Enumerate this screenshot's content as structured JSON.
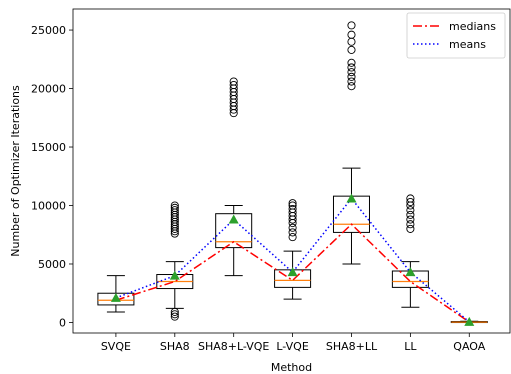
{
  "chart_data": {
    "type": "box",
    "categories": [
      "SVQE",
      "SHA8",
      "SHA8+L-VQE",
      "L-VQE",
      "SHA8+LL",
      "LL",
      "QAOA"
    ],
    "xlabel": "Method",
    "ylabel": "Number of Optimizer Iterations",
    "ylim": [
      -900,
      26800
    ],
    "yticks": [
      0,
      5000,
      10000,
      15000,
      20000,
      25000
    ],
    "grid": false,
    "legend": {
      "placement": "top-right",
      "entries": [
        "medians",
        "means"
      ]
    },
    "boxes": [
      {
        "category": "SVQE",
        "whisker_low": 900,
        "q1": 1500,
        "median": 1900,
        "q3": 2500,
        "whisker_high": 4000,
        "mean": 2100,
        "outliers": []
      },
      {
        "category": "SHA8",
        "whisker_low": 1200,
        "q1": 2900,
        "median": 3500,
        "q3": 4100,
        "whisker_high": 5200,
        "mean": 4000,
        "outliers": [
          500,
          700,
          900,
          7600,
          7800,
          8000,
          8200,
          8400,
          8600,
          8800,
          9000,
          9200,
          9400,
          9600,
          9800,
          10000
        ]
      },
      {
        "category": "SHA8+L-VQE",
        "whisker_low": 4000,
        "q1": 6400,
        "median": 6900,
        "q3": 9300,
        "whisker_high": 10000,
        "mean": 8800,
        "outliers": [
          17900,
          18200,
          18500,
          18800,
          19100,
          19400,
          19700,
          20000,
          20300,
          20600
        ]
      },
      {
        "category": "L-VQE",
        "whisker_low": 2000,
        "q1": 3000,
        "median": 3600,
        "q3": 4500,
        "whisker_high": 6100,
        "mean": 4300,
        "outliers": [
          7300,
          7700,
          8100,
          8500,
          8800,
          9100,
          9400,
          9700,
          10000,
          10200
        ]
      },
      {
        "category": "SHA8+LL",
        "whisker_low": 5000,
        "q1": 7700,
        "median": 8400,
        "q3": 10800,
        "whisker_high": 13200,
        "mean": 10600,
        "outliers": [
          20200,
          20600,
          21000,
          21400,
          21800,
          22200,
          23300,
          24000,
          24600,
          25400
        ]
      },
      {
        "category": "LL",
        "whisker_low": 1300,
        "q1": 3000,
        "median": 3500,
        "q3": 4400,
        "whisker_high": 5200,
        "mean": 4300,
        "outliers": [
          8000,
          8400,
          8800,
          9200,
          9600,
          10000,
          10300,
          10600
        ]
      },
      {
        "category": "QAOA",
        "whisker_low": 0,
        "q1": 0,
        "median": 30,
        "q3": 80,
        "whisker_high": 100,
        "mean": 50,
        "outliers": []
      }
    ],
    "series": [
      {
        "name": "medians",
        "style": "dashdot",
        "color": "#ff0000",
        "values": [
          1900,
          3500,
          6900,
          3600,
          8400,
          3500,
          30
        ]
      },
      {
        "name": "means",
        "style": "dotted",
        "color": "#0000ff",
        "values": [
          2100,
          4000,
          8800,
          4300,
          10600,
          4300,
          50
        ]
      }
    ],
    "colors": {
      "box": "#000000",
      "median_line": "#ff7f0e",
      "mean_marker": "#2ca02c",
      "flier": "#000000"
    }
  }
}
